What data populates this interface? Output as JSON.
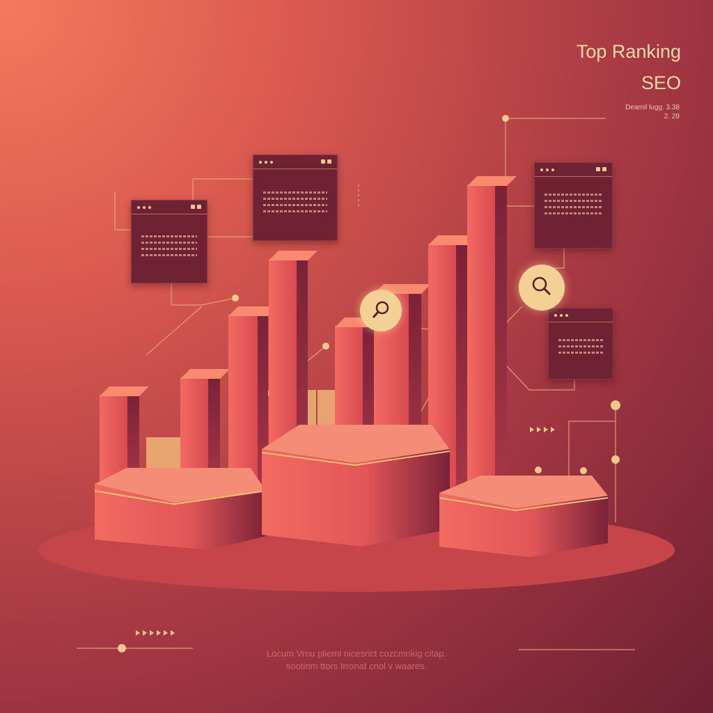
{
  "header": {
    "title_line1": "Top Ranking",
    "title_line2": "SEO"
  },
  "meta": {
    "line1": "Deamil lugg. 3.38",
    "line2": "2. 29"
  },
  "footer": {
    "line1": "Locum Vrou pliemi nicesrict cozcmnkig citap.",
    "line2": "sootinm ttors Irronat cnol v waares."
  },
  "icons": [
    "magnifier-icon",
    "play-arrows-icon",
    "window-dots-icon"
  ],
  "colors": {
    "accent": "#f3d195",
    "bar": "#f36a61",
    "card": "#6e2234",
    "background_dark": "#6e1f33"
  }
}
